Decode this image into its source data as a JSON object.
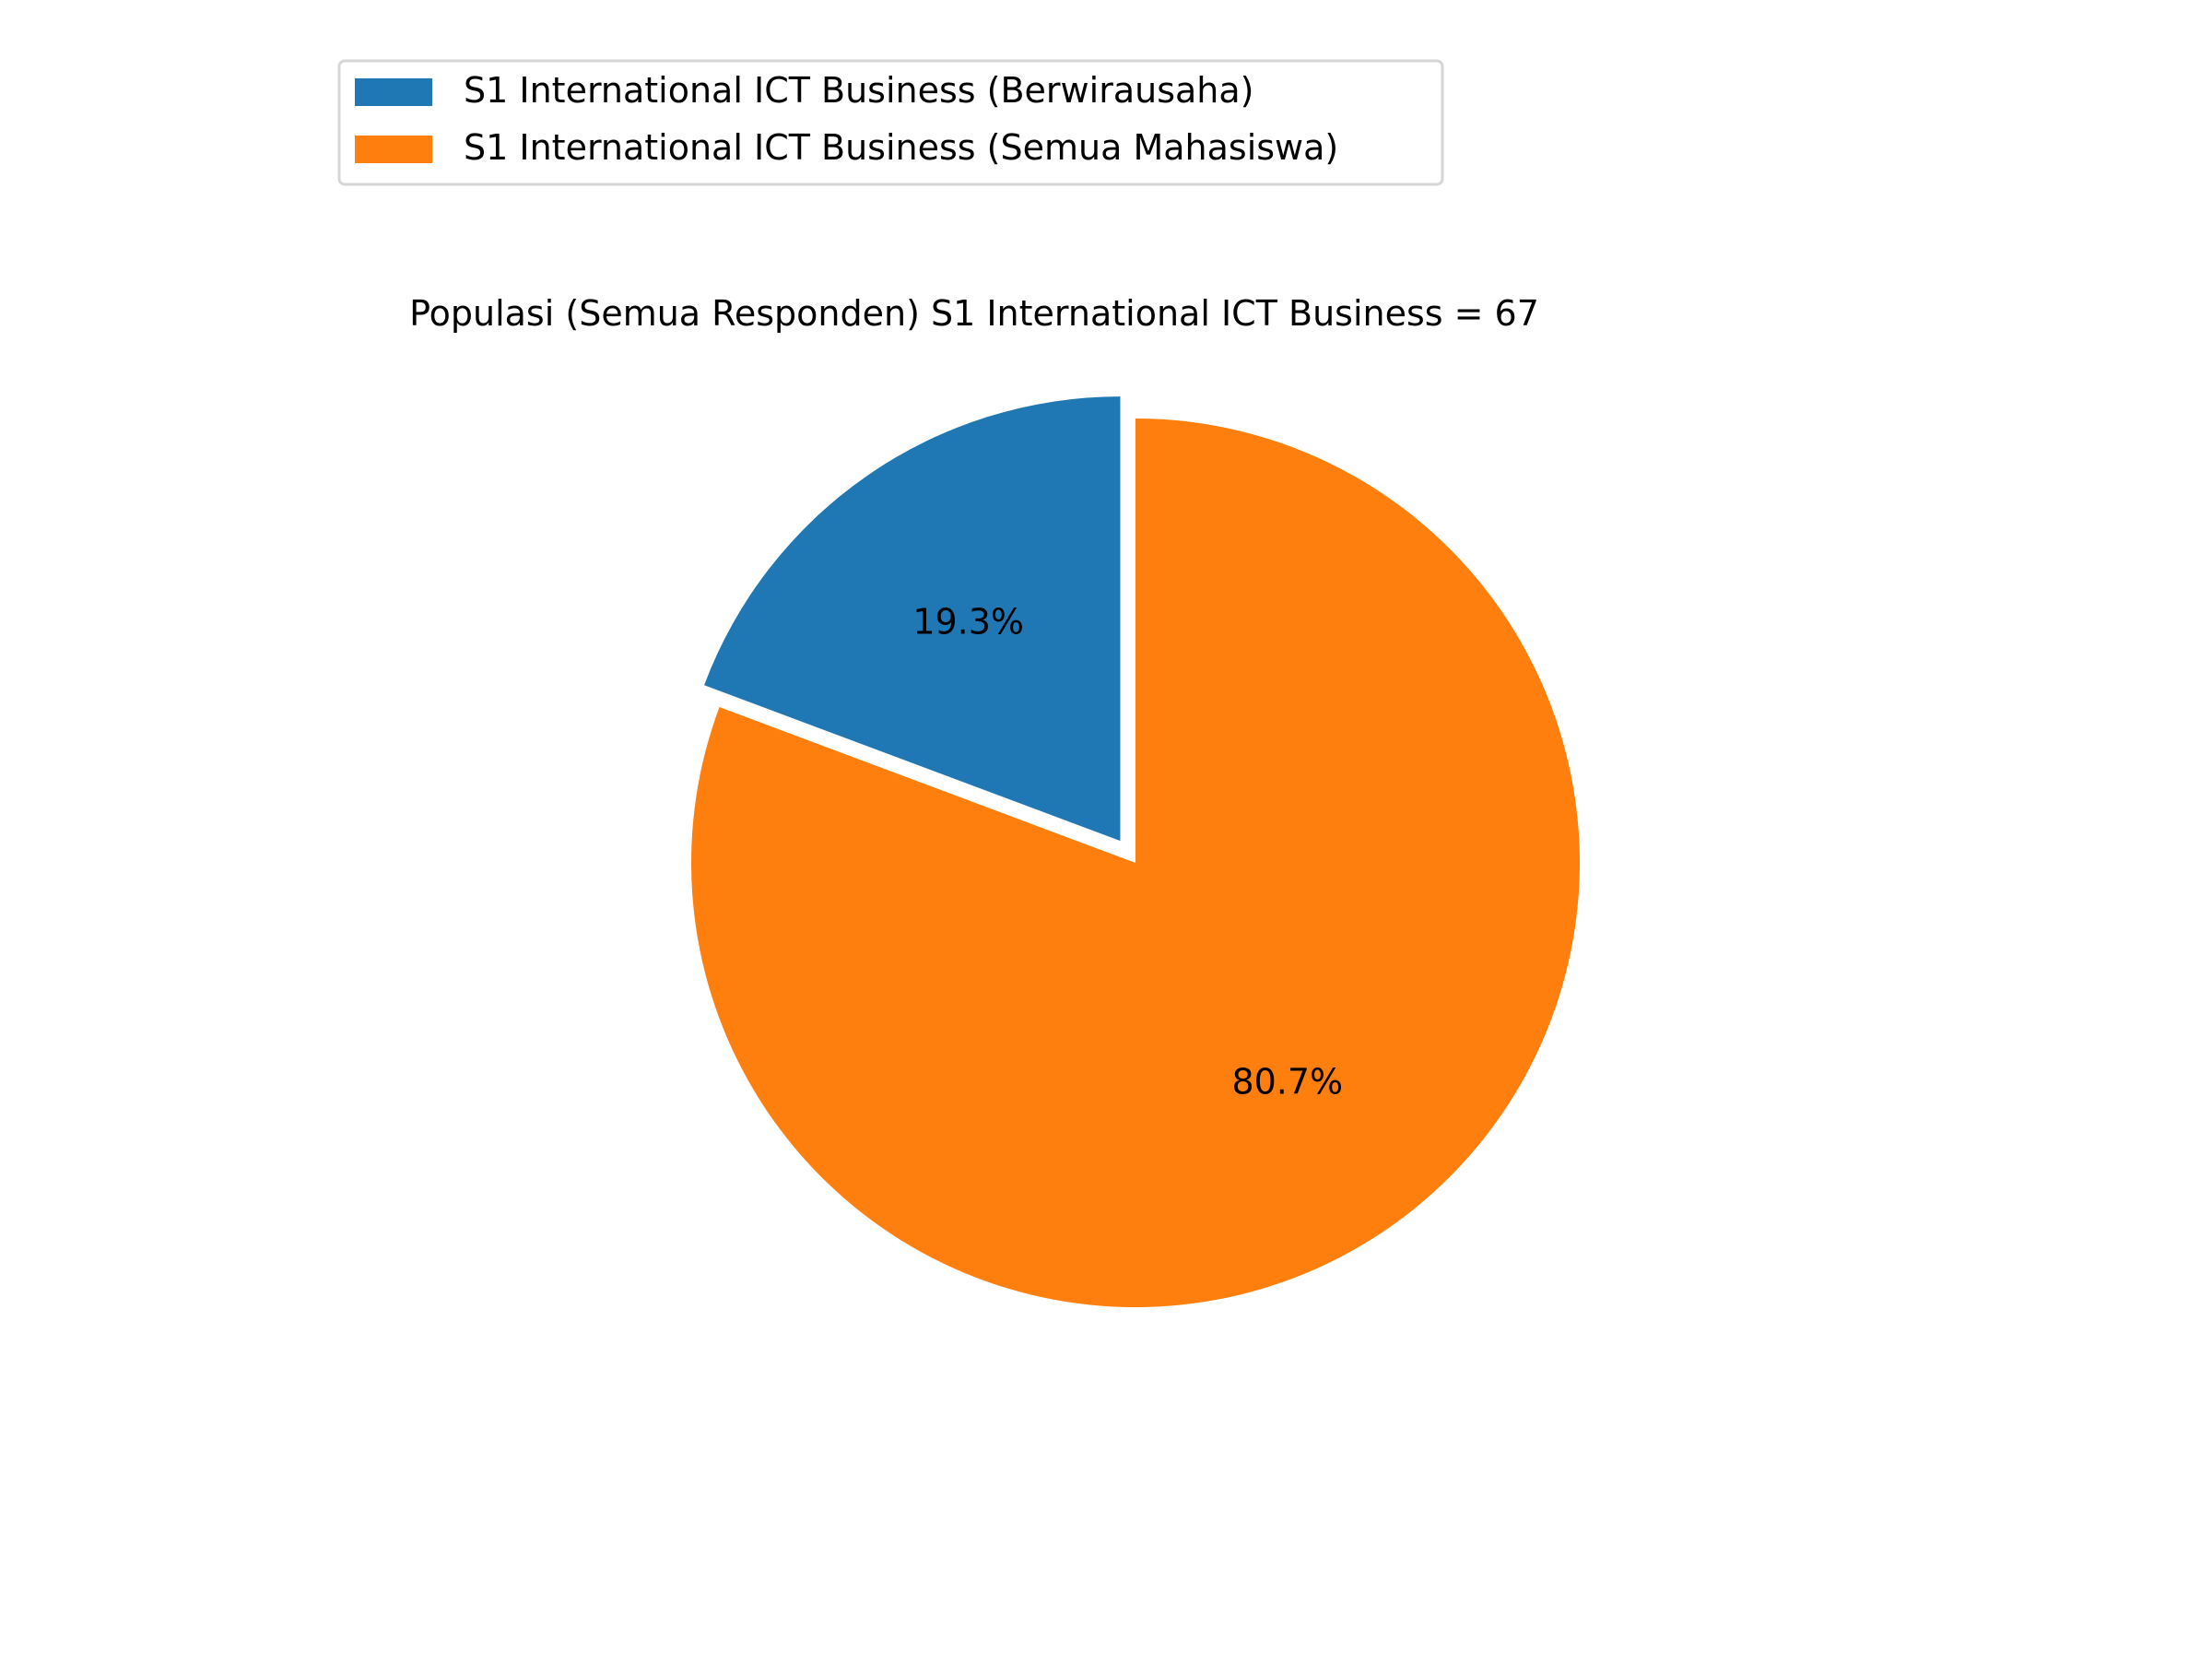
{
  "chart_data": {
    "type": "pie",
    "title": "Populasi (Semua Responden) S1 International ICT Business = 67",
    "legend_position": "top-left",
    "start_angle_deg": 90,
    "direction": "counterclockwise",
    "slices": [
      {
        "label": "S1 International ICT Business (Berwirausaha)",
        "value": 19.3,
        "display": "19.3%",
        "color": "#1f77b4",
        "exploded": true
      },
      {
        "label": "S1 International ICT Business (Semua Mahasiswa)",
        "value": 80.7,
        "display": "80.7%",
        "color": "#ff7f0e",
        "exploded": false
      }
    ]
  }
}
